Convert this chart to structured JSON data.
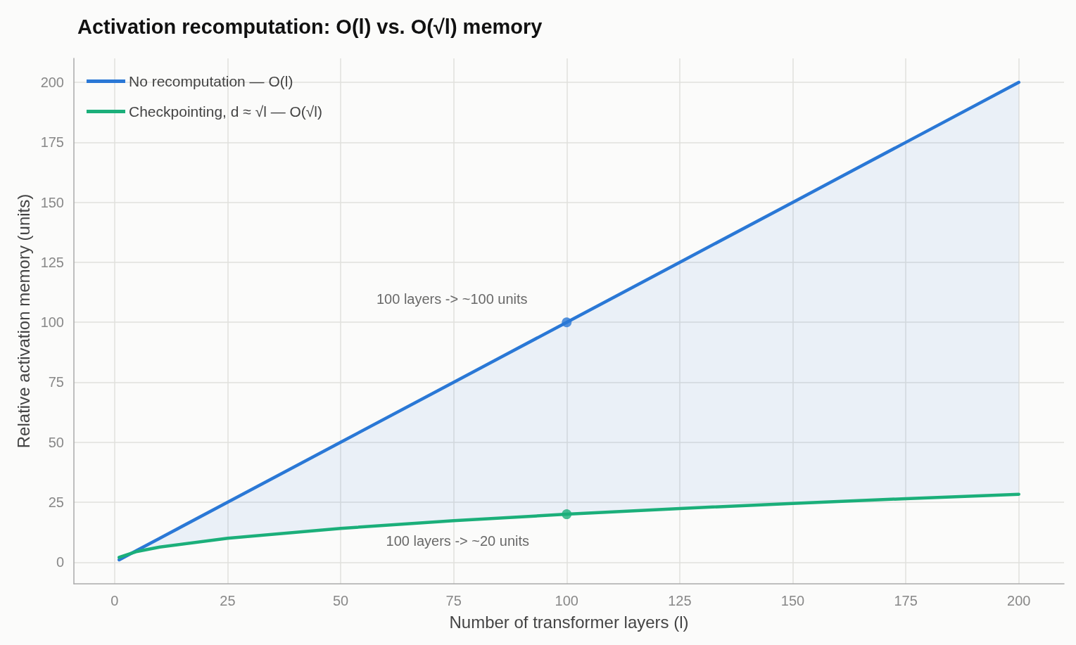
{
  "chart_data": {
    "type": "line",
    "title": "Activation recomputation: O(l) vs. O(√l) memory",
    "xlabel": "Number of transformer layers (l)",
    "ylabel": "Relative activation memory (units)",
    "x": [
      1,
      5,
      10,
      25,
      50,
      75,
      100,
      125,
      150,
      175,
      200
    ],
    "series": [
      {
        "name": "No recomputation — O(l)",
        "color": "#2a78d6",
        "values": [
          1,
          5,
          10,
          25,
          50,
          75,
          100,
          125,
          150,
          175,
          200
        ],
        "lower": [
          2,
          4.5,
          6.3,
          10,
          14.1,
          17.3,
          20,
          22.4,
          24.5,
          26.5,
          28.3
        ],
        "upper": [
          1,
          5,
          10,
          25,
          50,
          75,
          100,
          125,
          150,
          175,
          200
        ]
      },
      {
        "name": "Checkpointing, d ≈ √l — O(√l)",
        "color": "#1baf7a",
        "values": [
          2,
          4.5,
          6.3,
          10,
          14.1,
          17.3,
          20,
          22.4,
          24.5,
          26.5,
          28.3
        ]
      },
      {
        "type": "scatter",
        "x": [
          100
        ],
        "values": [
          100
        ],
        "color": "#2a78d6",
        "marker": "circle"
      },
      {
        "type": "scatter",
        "x": [
          100
        ],
        "values": [
          20
        ],
        "color": "#1baf7a",
        "marker": "circle"
      }
    ],
    "annotations": [
      "100 layers -> ~100 units",
      "100 layers -> ~20 units"
    ],
    "xlim": [
      -9,
      210
    ],
    "xticks": [
      0,
      25,
      50,
      75,
      100,
      125,
      150,
      175,
      200
    ],
    "ylim": [
      -9,
      210
    ],
    "yticks": [
      0,
      25,
      50,
      75,
      100,
      125,
      150,
      175,
      200
    ],
    "grid": true,
    "legend": "top left",
    "marker": "none"
  }
}
